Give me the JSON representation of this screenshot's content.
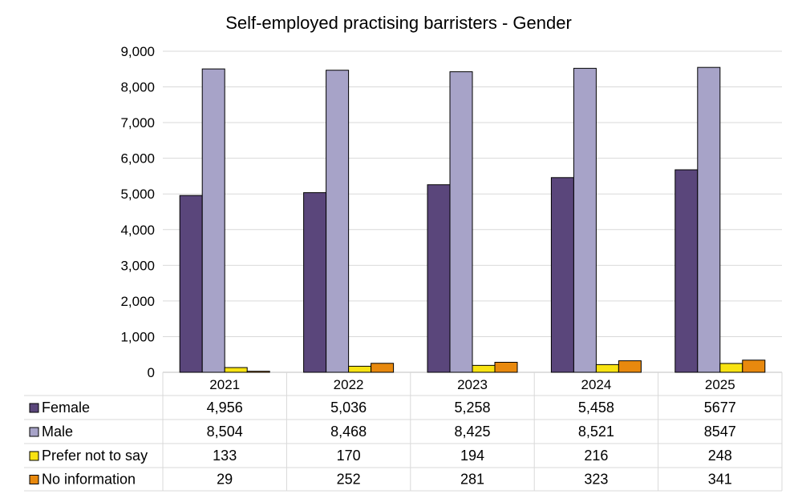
{
  "chart_data": {
    "type": "bar",
    "title": "Self-employed practising barristers - Gender",
    "categories": [
      "2021",
      "2022",
      "2023",
      "2024",
      "2025"
    ],
    "ylim": [
      0,
      9000
    ],
    "yticks": [
      "0",
      "1,000",
      "2,000",
      "3,000",
      "4,000",
      "5,000",
      "6,000",
      "7,000",
      "8,000",
      "9,000"
    ],
    "grid": true,
    "legend": "data-table-below",
    "series": [
      {
        "name": "Female",
        "color": "#5a467b",
        "values": [
          4956,
          5036,
          5258,
          5458,
          5677
        ],
        "labels": [
          "4,956",
          "5,036",
          "5,258",
          "5,458",
          "5677"
        ]
      },
      {
        "name": "Male",
        "color": "#a7a3c8",
        "values": [
          8504,
          8468,
          8425,
          8521,
          8547
        ],
        "labels": [
          "8,504",
          "8,468",
          "8,425",
          "8,521",
          "8547"
        ]
      },
      {
        "name": "Prefer not to say",
        "color": "#f8e312",
        "values": [
          133,
          170,
          194,
          216,
          248
        ],
        "labels": [
          "133",
          "170",
          "194",
          "216",
          "248"
        ]
      },
      {
        "name": "No information",
        "color": "#e8890e",
        "values": [
          29,
          252,
          281,
          323,
          341
        ],
        "labels": [
          "29",
          "252",
          "281",
          "323",
          "341"
        ]
      }
    ]
  }
}
